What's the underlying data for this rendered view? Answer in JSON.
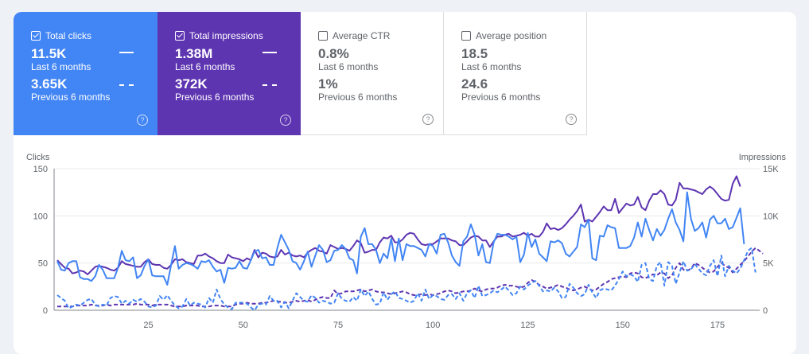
{
  "cards": [
    {
      "title": "Total clicks",
      "checked": true,
      "value": "11.5K",
      "value_label": "Last 6 months",
      "prev_value": "3.65K",
      "prev_label": "Previous 6 months",
      "color": "#4285f4"
    },
    {
      "title": "Total impressions",
      "checked": true,
      "value": "1.38M",
      "value_label": "Last 6 months",
      "prev_value": "372K",
      "prev_label": "Previous 6 months",
      "color": "#5e35b1"
    },
    {
      "title": "Average CTR",
      "checked": false,
      "value": "0.8%",
      "value_label": "Last 6 months",
      "prev_value": "1%",
      "prev_label": "Previous 6 months"
    },
    {
      "title": "Average position",
      "checked": false,
      "value": "18.5",
      "value_label": "Last 6 months",
      "prev_value": "24.6",
      "prev_label": "Previous 6 months"
    }
  ],
  "help_glyph": "?",
  "chart_data": {
    "type": "line",
    "ylabel_left": "Clicks",
    "ylabel_right": "Impressions",
    "ylim_left": [
      0,
      150
    ],
    "ylim_right": [
      0,
      15000
    ],
    "yticks_left": [
      "0",
      "50",
      "100",
      "150"
    ],
    "yticks_right": [
      "0",
      "5K",
      "10K",
      "15K"
    ],
    "xticks": [
      "25",
      "50",
      "75",
      "100",
      "125",
      "150",
      "175"
    ],
    "xlim": [
      1,
      184
    ],
    "grid": true,
    "series": [
      {
        "name": "Total clicks",
        "period": "Last 6 months",
        "axis": "left",
        "color": "#4285f4",
        "style": "solid",
        "values": [
          52,
          43,
          42,
          50,
          52,
          52,
          35,
          33,
          33,
          31,
          36,
          48,
          43,
          34,
          34,
          34,
          45,
          63,
          53,
          52,
          56,
          34,
          37,
          47,
          54,
          37,
          36,
          36,
          36,
          27,
          48,
          68,
          44,
          48,
          50,
          49,
          47,
          44,
          52,
          51,
          53,
          46,
          41,
          43,
          29,
          45,
          44,
          45,
          52,
          45,
          44,
          53,
          62,
          64,
          55,
          56,
          48,
          48,
          66,
          80,
          72,
          64,
          52,
          50,
          43,
          52,
          62,
          46,
          58,
          69,
          64,
          51,
          53,
          63,
          64,
          69,
          65,
          55,
          53,
          39,
          78,
          87,
          70,
          70,
          64,
          50,
          60,
          55,
          76,
          52,
          76,
          53,
          70,
          68,
          68,
          66,
          64,
          57,
          70,
          68,
          60,
          80,
          81,
          72,
          58,
          51,
          47,
          73,
          78,
          91,
          80,
          58,
          70,
          51,
          50,
          72,
          81,
          80,
          80,
          78,
          75,
          78,
          51,
          59,
          82,
          67,
          75,
          60,
          56,
          52,
          73,
          72,
          74,
          71,
          60,
          57,
          62,
          67,
          91,
          88,
          96,
          55,
          53,
          79,
          78,
          90,
          88,
          87,
          66,
          66,
          66,
          68,
          77,
          93,
          78,
          97,
          85,
          74,
          86,
          79,
          85,
          97,
          107,
          93,
          85,
          73,
          125,
          97,
          84,
          87,
          93,
          77,
          96,
          100,
          92,
          92,
          97,
          86,
          88,
          98,
          108,
          70
        ]
      },
      {
        "name": "Total impressions",
        "period": "Last 6 months",
        "axis": "right",
        "color": "#5e35b1",
        "style": "solid",
        "values": [
          5300,
          4900,
          4500,
          4400,
          3900,
          4000,
          4200,
          4100,
          3800,
          4200,
          4600,
          4700,
          4600,
          4500,
          4300,
          4200,
          4500,
          5200,
          4900,
          4800,
          4700,
          4600,
          4600,
          5100,
          5400,
          4900,
          4800,
          4800,
          4500,
          4400,
          4800,
          5400,
          5300,
          5400,
          5100,
          5000,
          4900,
          5800,
          5800,
          6000,
          5700,
          5500,
          5200,
          5000,
          5000,
          5900,
          5600,
          5500,
          5400,
          5200,
          5500,
          5300,
          6400,
          5600,
          6100,
          6000,
          5700,
          5600,
          5700,
          6400,
          5900,
          6100,
          5800,
          5700,
          5800,
          5600,
          6100,
          6400,
          6600,
          6300,
          6200,
          6000,
          6900,
          6700,
          6500,
          6600,
          6500,
          6300,
          6800,
          7400,
          7100,
          6100,
          6200,
          6400,
          6400,
          7200,
          7700,
          7600,
          7900,
          7200,
          7200,
          7500,
          8000,
          8200,
          8100,
          7500,
          7000,
          6900,
          7000,
          7000,
          7300,
          7600,
          7600,
          7600,
          7400,
          7300,
          6900,
          6900,
          7300,
          7700,
          7900,
          7800,
          7400,
          7400,
          6700,
          7300,
          7800,
          7800,
          8000,
          8100,
          7800,
          7900,
          8000,
          8200,
          7900,
          8100,
          7800,
          7800,
          8300,
          9200,
          8600,
          8700,
          8500,
          8700,
          9100,
          9600,
          10000,
          10500,
          11200,
          9400,
          9600,
          9400,
          9900,
          10400,
          11000,
          10600,
          10600,
          11800,
          10300,
          10800,
          11300,
          11100,
          11200,
          12000,
          10900,
          10600,
          11600,
          12300,
          12300,
          12700,
          12300,
          11200,
          11100,
          11700,
          13500,
          12900,
          12900,
          12800,
          12700,
          12500,
          12300,
          12800,
          13100,
          12800,
          12300,
          11800,
          11600,
          11700,
          13400,
          14200,
          13100
        ]
      },
      {
        "name": "Total clicks",
        "period": "Previous 6 months",
        "axis": "left",
        "color": "#4285f4",
        "style": "dashed",
        "values": [
          16,
          13,
          10,
          2,
          4,
          6,
          5,
          8,
          11,
          12,
          6,
          4,
          6,
          5,
          13,
          15,
          14,
          7,
          10,
          7,
          11,
          9,
          12,
          9,
          4,
          3,
          5,
          15,
          11,
          16,
          10,
          5,
          2,
          4,
          12,
          5,
          8,
          7,
          6,
          3,
          13,
          8,
          22,
          12,
          6,
          3,
          1,
          8,
          8,
          8,
          7,
          3,
          0,
          6,
          7,
          6,
          15,
          10,
          10,
          3,
          9,
          2,
          10,
          18,
          14,
          10,
          9,
          16,
          13,
          8,
          10,
          9,
          7,
          8,
          18,
          12,
          10,
          9,
          14,
          10,
          22,
          15,
          20,
          12,
          6,
          7,
          19,
          11,
          17,
          20,
          13,
          12,
          10,
          8,
          10,
          18,
          10,
          22,
          12,
          16,
          15,
          12,
          11,
          16,
          17,
          12,
          18,
          10,
          18,
          21,
          13,
          26,
          15,
          16,
          18,
          21,
          19,
          22,
          25,
          21,
          16,
          18,
          25,
          22,
          26,
          29,
          31,
          26,
          20,
          21,
          20,
          24,
          20,
          13,
          14,
          28,
          24,
          18,
          15,
          17,
          27,
          19,
          13,
          21,
          23,
          22,
          21,
          26,
          33,
          41,
          36,
          38,
          36,
          30,
          48,
          50,
          33,
          31,
          47,
          51,
          26,
          51,
          47,
          28,
          40,
          52,
          42,
          43,
          49,
          44,
          39,
          37,
          47,
          53,
          36,
          58,
          36,
          47,
          42,
          39,
          44,
          53,
          63,
          66,
          40
        ]
      },
      {
        "name": "Total impressions",
        "period": "Previous 6 months",
        "axis": "right",
        "color": "#5e35b1",
        "style": "dashed",
        "values": [
          400,
          400,
          400,
          400,
          400,
          500,
          500,
          500,
          500,
          600,
          500,
          500,
          500,
          600,
          500,
          600,
          600,
          600,
          600,
          600,
          600,
          700,
          600,
          600,
          600,
          500,
          600,
          600,
          600,
          600,
          500,
          400,
          400,
          400,
          500,
          500,
          500,
          500,
          400,
          400,
          400,
          500,
          500,
          500,
          400,
          400,
          400,
          600,
          700,
          700,
          800,
          700,
          700,
          700,
          800,
          800,
          900,
          1000,
          900,
          900,
          800,
          800,
          900,
          1000,
          900,
          1000,
          1100,
          900,
          1100,
          1300,
          1400,
          1300,
          1300,
          2100,
          1700,
          1800,
          2000,
          2000,
          2000,
          2100,
          2200,
          2000,
          2100,
          2200,
          2000,
          1900,
          1900,
          1800,
          1700,
          1800,
          1900,
          2000,
          1900,
          1700,
          1600,
          1600,
          1700,
          1600,
          1700,
          1600,
          1700,
          1800,
          2000,
          2100,
          2000,
          1800,
          1900,
          2000,
          2000,
          2100,
          2300,
          2100,
          2000,
          2200,
          2300,
          2300,
          2400,
          2600,
          2700,
          2600,
          2600,
          2500,
          2400,
          2500,
          2900,
          3200,
          3000,
          2700,
          2500,
          2300,
          2400,
          2500,
          2700,
          2500,
          2400,
          2200,
          2100,
          2200,
          2400,
          2500,
          2300,
          2100,
          2200,
          2500,
          2800,
          3000,
          3300,
          3400,
          3500,
          3600,
          3500,
          3900,
          4000,
          3900,
          3500,
          3400,
          3600,
          3800,
          3700,
          4000,
          3900,
          3400,
          3700,
          4500,
          5000,
          4300,
          4200,
          4400,
          5000,
          4800,
          4500,
          4200,
          4000,
          4100,
          4600,
          5000,
          4700,
          4500,
          4000,
          4400,
          4800,
          5200,
          5700,
          6200,
          6600,
          6300,
          6000
        ]
      }
    ]
  }
}
